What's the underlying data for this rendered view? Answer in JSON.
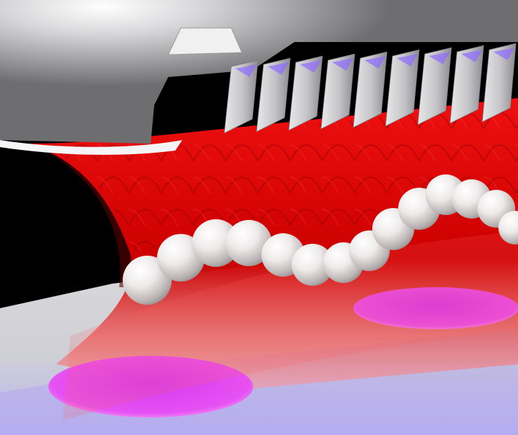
{
  "scene": {
    "description_free": true,
    "colors": {
      "background": "#000000",
      "floor": "#c8c8cc",
      "membrane": "#e00000",
      "membrane_dark": "#8a0000",
      "disk": "#e23cf0",
      "bead": "#f2eeee",
      "roof": "#b9b9bb",
      "fins_highlight": "#8f6bff"
    },
    "bead_count": 14,
    "disk_count": 2
  }
}
